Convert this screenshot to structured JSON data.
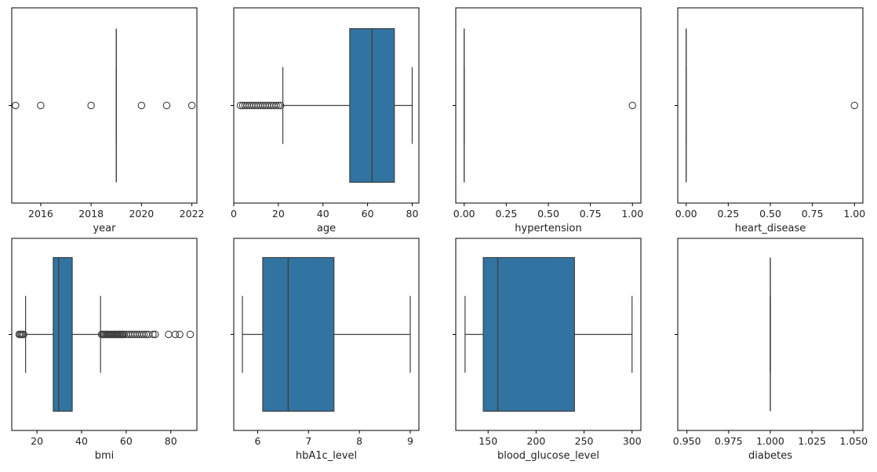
{
  "chart_data": [
    {
      "type": "boxplot",
      "xlabel": "year",
      "xlim": [
        2014.85,
        2022.2
      ],
      "ticks": [
        2016,
        2018,
        2020,
        2022
      ],
      "tick_labels": [
        "2016",
        "2018",
        "2020",
        "2022"
      ],
      "box": {
        "q1": 2019,
        "median": 2019,
        "q3": 2019,
        "whisker_low": 2019,
        "whisker_high": 2019
      },
      "outliers": [
        2015,
        2016,
        2018,
        2020,
        2021,
        2022
      ]
    },
    {
      "type": "boxplot",
      "xlabel": "age",
      "xlim": [
        0,
        83
      ],
      "ticks": [
        0,
        20,
        40,
        60,
        80
      ],
      "tick_labels": [
        "0",
        "20",
        "40",
        "60",
        "80"
      ],
      "box": {
        "q1": 52,
        "median": 62,
        "q3": 72,
        "whisker_low": 22,
        "whisker_high": 80
      },
      "outliers": [
        3,
        4,
        5,
        6,
        7,
        8,
        9,
        10,
        11,
        12,
        13,
        14,
        15,
        16,
        17,
        18,
        19,
        20,
        21
      ]
    },
    {
      "type": "boxplot",
      "xlabel": "hypertension",
      "xlim": [
        -0.05,
        1.05
      ],
      "ticks": [
        0,
        0.25,
        0.5,
        0.75,
        1.0
      ],
      "tick_labels": [
        "0.00",
        "0.25",
        "0.50",
        "0.75",
        "1.00"
      ],
      "box": {
        "q1": 0,
        "median": 0,
        "q3": 0,
        "whisker_low": 0,
        "whisker_high": 0
      },
      "outliers": [
        1
      ]
    },
    {
      "type": "boxplot",
      "xlabel": "heart_disease",
      "xlim": [
        -0.05,
        1.05
      ],
      "ticks": [
        0,
        0.25,
        0.5,
        0.75,
        1.0
      ],
      "tick_labels": [
        "0.00",
        "0.25",
        "0.50",
        "0.75",
        "1.00"
      ],
      "box": {
        "q1": 0,
        "median": 0,
        "q3": 0,
        "whisker_low": 0,
        "whisker_high": 0
      },
      "outliers": [
        1
      ]
    },
    {
      "type": "boxplot",
      "xlabel": "bmi",
      "xlim": [
        8.7,
        91.7
      ],
      "ticks": [
        20,
        40,
        60,
        80
      ],
      "tick_labels": [
        "20",
        "40",
        "60",
        "80"
      ],
      "box": {
        "q1": 27.3,
        "median": 29.7,
        "q3": 35.8,
        "whisker_low": 14.9,
        "whisker_high": 48.5
      },
      "outliers": [
        12.0,
        12.5,
        13.0,
        13.5,
        14.0,
        49,
        49.5,
        50,
        50.5,
        51,
        51.5,
        52,
        52.5,
        53,
        53.5,
        54,
        54.5,
        55,
        55.5,
        56,
        56.5,
        57,
        57.5,
        58,
        58.5,
        59,
        60,
        61,
        62,
        63,
        64,
        65,
        66,
        67,
        68,
        69,
        70,
        72,
        73,
        79,
        82,
        84,
        88.7
      ]
    },
    {
      "type": "boxplot",
      "xlabel": "hbA1c_level",
      "xlim": [
        5.53,
        9.17
      ],
      "ticks": [
        6,
        7,
        8,
        9
      ],
      "tick_labels": [
        "6",
        "7",
        "8",
        "9"
      ],
      "box": {
        "q1": 6.1,
        "median": 6.6,
        "q3": 7.5,
        "whisker_low": 5.7,
        "whisker_high": 9.0
      },
      "outliers": []
    },
    {
      "type": "boxplot",
      "xlabel": "blood_glucose_level",
      "xlim": [
        116.3,
        309.2
      ],
      "ticks": [
        150,
        200,
        250,
        300
      ],
      "tick_labels": [
        "150",
        "200",
        "250",
        "300"
      ],
      "box": {
        "q1": 145,
        "median": 160,
        "q3": 240,
        "whisker_low": 126,
        "whisker_high": 300
      },
      "outliers": []
    },
    {
      "type": "boxplot",
      "xlabel": "diabetes",
      "xlim": [
        0.9445,
        1.0555
      ],
      "ticks": [
        0.95,
        0.975,
        1.0,
        1.025,
        1.05
      ],
      "tick_labels": [
        "0.950",
        "0.975",
        "1.000",
        "1.025",
        "1.050"
      ],
      "box": {
        "q1": 1,
        "median": 1,
        "q3": 1,
        "whisker_low": 1,
        "whisker_high": 1
      },
      "outliers": []
    }
  ],
  "style": {
    "box_color": "#3274a1",
    "line_color": "#3f3f3f",
    "axis_color": "#000000"
  }
}
